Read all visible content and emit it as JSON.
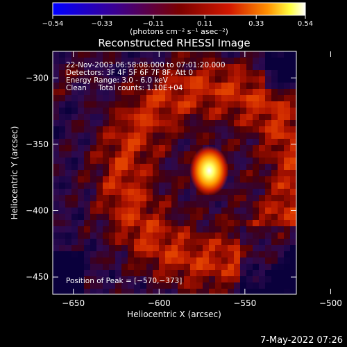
{
  "chart_data": {
    "type": "heatmap",
    "title": "Reconstructed RHESSI Image",
    "xlabel": "Heliocentric X (arcsec)",
    "ylabel": "Heliocentric Y (arcsec)",
    "xlim": [
      -662,
      -520
    ],
    "ylim": [
      -463,
      -280
    ],
    "xticks": [
      -650,
      -600,
      -550,
      -500
    ],
    "yticks": [
      -300,
      -350,
      -400,
      -450
    ],
    "xtick_labels": [
      "−650",
      "−600",
      "−550",
      "−500"
    ],
    "ytick_labels": [
      "−300",
      "−350",
      "−400",
      "−450"
    ],
    "colorbar": {
      "min": -0.54,
      "max": 0.54,
      "ticks": [
        -0.54,
        -0.33,
        -0.11,
        0.11,
        0.33,
        0.54
      ],
      "tick_labels": [
        "−0.54",
        "−0.33",
        "−0.11",
        "0.11",
        "0.33",
        "0.54"
      ],
      "units": "(photons cm⁻² s⁻¹ asec⁻²)",
      "colormap": [
        "#0000ff",
        "#3b0090",
        "#7a0000",
        "#d21800",
        "#ff9000",
        "#ffff40",
        "#ffffff"
      ]
    },
    "peak": {
      "x": -570,
      "y": -373,
      "value": 0.54
    },
    "annotations": [
      "22-Nov-2003 06:58:08.000 to 07:01:20.000",
      "Detectors: 3F 4F 5F 6F 7F 8F, Att 0",
      "Energy Range: 3.0 - 6.0 keV",
      "Clean     Total counts: 1.10E+04"
    ],
    "peak_label": "Position of Peak = [−570,−373]"
  },
  "footer": {
    "timestamp": "7-May-2022 07:26"
  },
  "colors": {
    "background": "#000000",
    "foreground": "#ffffff"
  }
}
